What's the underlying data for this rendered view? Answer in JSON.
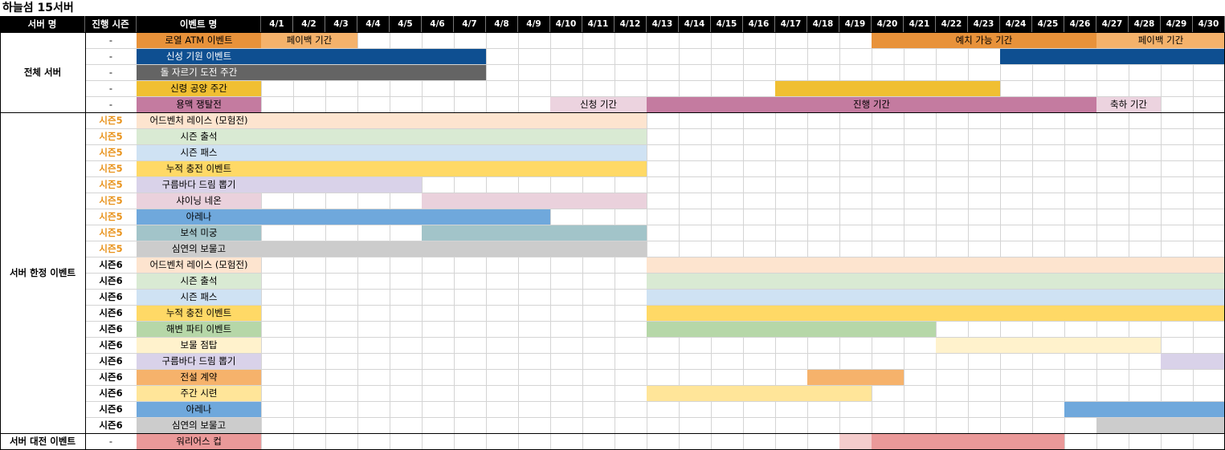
{
  "title": "하늘섬 15서버",
  "headers": {
    "server": "서버 명",
    "season": "진행 시즌",
    "event": "이벤트 명"
  },
  "dates": [
    "4/1",
    "4/2",
    "4/3",
    "4/4",
    "4/5",
    "4/6",
    "4/7",
    "4/8",
    "4/9",
    "4/10",
    "4/11",
    "4/12",
    "4/13",
    "4/14",
    "4/15",
    "4/16",
    "4/17",
    "4/18",
    "4/19",
    "4/20",
    "4/21",
    "4/22",
    "4/23",
    "4/24",
    "4/25",
    "4/26",
    "4/27",
    "4/28",
    "4/29",
    "4/30"
  ],
  "groups": [
    {
      "name": "전체 서버",
      "start": 0,
      "end": 4
    },
    {
      "name": "서버 한정 이벤트",
      "start": 5,
      "end": 24
    },
    {
      "name": "서버 대전 이벤트",
      "start": 25,
      "end": 25
    }
  ],
  "rows": [
    {
      "season": "-",
      "name": "로열 ATM 이벤트",
      "color": "#e8923a",
      "bars": [
        {
          "s": 1,
          "e": 3,
          "color": "#f4b26b",
          "label": "페이백 기간"
        },
        {
          "s": 20,
          "e": 26,
          "color": "#e8923a",
          "label": "예치 가능 기간"
        },
        {
          "s": 27,
          "e": 30,
          "color": "#f4b26b",
          "label": "페이백 기간"
        }
      ]
    },
    {
      "season": "-",
      "name": "신성 기원 이벤트",
      "color": "#0e4f91",
      "textColor": "#ffffff",
      "bars": [
        {
          "s": 1,
          "e": 7,
          "color": "#0e4f91"
        },
        {
          "s": 24,
          "e": 30,
          "color": "#0e4f91"
        }
      ]
    },
    {
      "season": "-",
      "name": "돌 자르기 도전 주간",
      "color": "#646464",
      "textColor": "#ffffff",
      "bars": [
        {
          "s": 1,
          "e": 7,
          "color": "#646464"
        }
      ]
    },
    {
      "season": "-",
      "name": "신령 공양 주간",
      "color": "#f0bf32",
      "bars": [
        {
          "s": 17,
          "e": 23,
          "color": "#f0bf32"
        }
      ]
    },
    {
      "season": "-",
      "name": "용맥 쟁탈전",
      "color": "#c47ba0",
      "bars": [
        {
          "s": 10,
          "e": 12,
          "color": "#ecd3df",
          "label": "신청 기간"
        },
        {
          "s": 13,
          "e": 26,
          "color": "#c47ba0",
          "label": "진행 기간"
        },
        {
          "s": 27,
          "e": 28,
          "color": "#ecd3df",
          "label": "축하 기간"
        }
      ]
    },
    {
      "season": "시즌5",
      "seasonColor": "#e8921a",
      "name": "어드벤처 레이스 (모험전)",
      "color": "#fde4cf",
      "bars": [
        {
          "s": 1,
          "e": 12,
          "color": "#fde4cf"
        }
      ]
    },
    {
      "season": "시즌5",
      "seasonColor": "#e8921a",
      "name": "시즌 출석",
      "color": "#d9ead3",
      "bars": [
        {
          "s": 1,
          "e": 12,
          "color": "#d9ead3"
        }
      ]
    },
    {
      "season": "시즌5",
      "seasonColor": "#e8921a",
      "name": "시즌 패스",
      "color": "#cfe2f3",
      "bars": [
        {
          "s": 1,
          "e": 12,
          "color": "#cfe2f3"
        }
      ]
    },
    {
      "season": "시즌5",
      "seasonColor": "#e8921a",
      "name": "누적 충전 이벤트",
      "color": "#ffd966",
      "bars": [
        {
          "s": 1,
          "e": 12,
          "color": "#ffd966"
        }
      ]
    },
    {
      "season": "시즌5",
      "seasonColor": "#e8921a",
      "name": "구름바다 드림 뽑기",
      "color": "#d9d2e9",
      "bars": [
        {
          "s": 1,
          "e": 5,
          "color": "#d9d2e9"
        }
      ]
    },
    {
      "season": "시즌5",
      "seasonColor": "#e8921a",
      "name": "샤이닝 네온",
      "color": "#ead1dc",
      "bars": [
        {
          "s": 6,
          "e": 12,
          "color": "#ead1dc"
        }
      ]
    },
    {
      "season": "시즌5",
      "seasonColor": "#e8921a",
      "name": "아레나",
      "color": "#6fa8dc",
      "bars": [
        {
          "s": 1,
          "e": 9,
          "color": "#6fa8dc"
        }
      ]
    },
    {
      "season": "시즌5",
      "seasonColor": "#e8921a",
      "name": "보석 미궁",
      "color": "#a2c4c9",
      "bars": [
        {
          "s": 6,
          "e": 12,
          "color": "#a2c4c9"
        }
      ]
    },
    {
      "season": "시즌5",
      "seasonColor": "#e8921a",
      "name": "심연의 보물고",
      "color": "#cccccc",
      "bars": [
        {
          "s": 1,
          "e": 12,
          "color": "#cccccc"
        }
      ]
    },
    {
      "season": "시즌6",
      "name": "어드벤처 레이스 (모험전)",
      "color": "#fde4cf",
      "bars": [
        {
          "s": 13,
          "e": 30,
          "color": "#fde4cf"
        }
      ]
    },
    {
      "season": "시즌6",
      "name": "시즌 출석",
      "color": "#d9ead3",
      "bars": [
        {
          "s": 13,
          "e": 30,
          "color": "#d9ead3"
        }
      ]
    },
    {
      "season": "시즌6",
      "name": "시즌 패스",
      "color": "#cfe2f3",
      "bars": [
        {
          "s": 13,
          "e": 30,
          "color": "#cfe2f3"
        }
      ]
    },
    {
      "season": "시즌6",
      "name": "누적 충전 이벤트",
      "color": "#ffd966",
      "bars": [
        {
          "s": 13,
          "e": 30,
          "color": "#ffd966"
        }
      ]
    },
    {
      "season": "시즌6",
      "name": "해변 파티 이벤트",
      "color": "#b6d7a8",
      "bars": [
        {
          "s": 13,
          "e": 21,
          "color": "#b6d7a8"
        }
      ]
    },
    {
      "season": "시즌6",
      "name": "보물 점탑",
      "color": "#fff2cc",
      "bars": [
        {
          "s": 22,
          "e": 28,
          "color": "#fff2cc"
        }
      ]
    },
    {
      "season": "시즌6",
      "name": "구름바다 드림 뽑기",
      "color": "#d9d2e9",
      "bars": [
        {
          "s": 29,
          "e": 30,
          "color": "#d9d2e9"
        }
      ]
    },
    {
      "season": "시즌6",
      "name": "전설 계약",
      "color": "#f6b26b",
      "bars": [
        {
          "s": 18,
          "e": 20,
          "color": "#f6b26b"
        }
      ]
    },
    {
      "season": "시즌6",
      "name": "주간 시련",
      "color": "#ffe599",
      "bars": [
        {
          "s": 13,
          "e": 19,
          "color": "#ffe599"
        }
      ]
    },
    {
      "season": "시즌6",
      "name": "아레나",
      "color": "#6fa8dc",
      "bars": [
        {
          "s": 26,
          "e": 30,
          "color": "#6fa8dc"
        }
      ]
    },
    {
      "season": "시즌6",
      "name": "심연의 보물고",
      "color": "#cccccc",
      "bars": [
        {
          "s": 27,
          "e": 30,
          "color": "#cccccc"
        }
      ]
    },
    {
      "season": "-",
      "name": "워리어스 컵",
      "color": "#ea9999",
      "bars": [
        {
          "s": 19,
          "e": 19,
          "color": "#f4cccc"
        },
        {
          "s": 20,
          "e": 25,
          "color": "#ea9999"
        }
      ]
    }
  ]
}
